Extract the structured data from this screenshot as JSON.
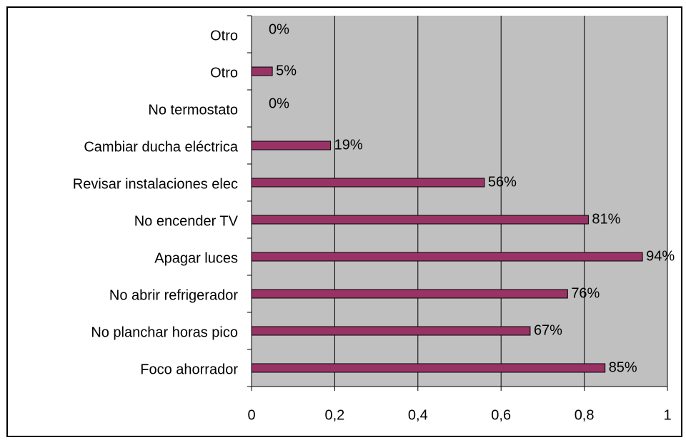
{
  "chart_data": {
    "type": "bar",
    "orientation": "horizontal",
    "categories": [
      "Otro",
      "Otro",
      "No termostato",
      "Cambiar ducha eléctrica",
      "Revisar instalaciones elec",
      "No encender TV",
      "Apagar luces",
      "No abrir refrigerador",
      "No planchar horas pico",
      "Foco ahorrador"
    ],
    "values": [
      0,
      0.05,
      0,
      0.19,
      0.56,
      0.81,
      0.94,
      0.76,
      0.67,
      0.85
    ],
    "value_labels": [
      "0%",
      "5%",
      "0%",
      "19%",
      "56%",
      "81%",
      "94%",
      "76%",
      "67%",
      "85%"
    ],
    "color": "#993366",
    "xlim": [
      0,
      1
    ],
    "xticks": [
      0,
      {
        "value": 0.2,
        "label": "0,2"
      },
      {
        "value": 0.4,
        "label": "0,4"
      },
      {
        "value": 0.6,
        "label": "0,6"
      },
      {
        "value": 0.8,
        "label": "0,8"
      },
      1
    ],
    "grid": true
  }
}
